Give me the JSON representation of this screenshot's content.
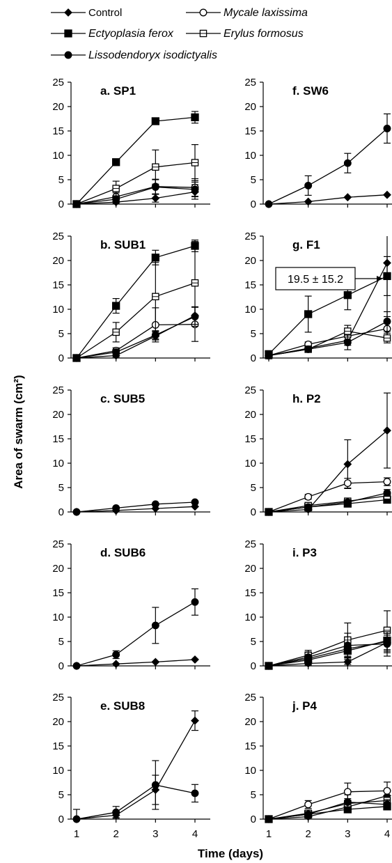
{
  "legend": [
    {
      "name": "Control",
      "marker": "diamond",
      "fill": "#000000"
    },
    {
      "name": "Mycale laxissima",
      "marker": "circle",
      "fill": "#ffffff"
    },
    {
      "name": "Ectyoplasia ferox",
      "marker": "square",
      "fill": "#000000"
    },
    {
      "name": "Erylus formosus",
      "marker": "square-open",
      "fill": "#ffffff"
    },
    {
      "name": "Lissodendoryx isodictyalis",
      "marker": "circle",
      "fill": "#000000"
    }
  ],
  "ylabel": "Area of swarm (cm²)",
  "xlabel": "Time (days)",
  "chart_data": [
    {
      "type": "line",
      "title": "a.  SP1",
      "ylim": [
        0,
        25
      ],
      "x": [
        1,
        2,
        3,
        4
      ],
      "yticks": [
        "0",
        "5",
        "10",
        "15",
        "20",
        "25"
      ],
      "xticks": [],
      "series": [
        {
          "name": "Control",
          "values": [
            0,
            0.4,
            1.2,
            2.5
          ],
          "err": [
            0,
            0.3,
            0.8,
            1.5
          ]
        },
        {
          "name": "Mycale laxissima",
          "values": [
            0,
            1.5,
            3.6,
            3.4
          ],
          "err": [
            0,
            0.8,
            1.5,
            1.8
          ]
        },
        {
          "name": "Ectyoplasia ferox",
          "values": [
            0,
            8.6,
            17.0,
            17.8
          ],
          "err": [
            0,
            0.4,
            0.5,
            1.2
          ]
        },
        {
          "name": "Erylus formosus",
          "values": [
            0,
            3.2,
            7.6,
            8.5
          ],
          "err": [
            0,
            1.5,
            3.5,
            3.7
          ]
        },
        {
          "name": "Lissodendoryx isodictyalis",
          "values": [
            0,
            1.0,
            3.5,
            3.0
          ],
          "err": [
            0,
            0.5,
            1.5,
            1.5
          ]
        }
      ]
    },
    {
      "type": "line",
      "title": "b.  SUB1",
      "ylim": [
        0,
        25
      ],
      "x": [
        1,
        2,
        3,
        4
      ],
      "yticks": [
        "0",
        "5",
        "10",
        "15",
        "20",
        "25"
      ],
      "xticks": [],
      "series": [
        {
          "name": "Control",
          "values": [
            0,
            0.5,
            4.5,
            8.7
          ],
          "err": [
            0,
            0.3,
            0.8,
            1.8
          ]
        },
        {
          "name": "Mycale laxissima",
          "values": [
            0,
            1.5,
            6.8,
            6.9
          ],
          "err": [
            0,
            0.6,
            3.5,
            3.5
          ]
        },
        {
          "name": "Ectyoplasia ferox",
          "values": [
            0,
            10.7,
            20.6,
            23.0
          ],
          "err": [
            0,
            1.5,
            1.5,
            1.2
          ]
        },
        {
          "name": "Erylus formosus",
          "values": [
            0,
            5.3,
            12.6,
            15.4
          ],
          "err": [
            0,
            2.0,
            7.0,
            8.5
          ]
        },
        {
          "name": "Lissodendoryx isodictyalis",
          "values": [
            0,
            1.2,
            4.7,
            8.5
          ],
          "err": [
            0,
            0.4,
            0.8,
            2.0
          ]
        }
      ]
    },
    {
      "type": "line",
      "title": "c.  SUB5",
      "ylim": [
        0,
        25
      ],
      "x": [
        1,
        2,
        3,
        4
      ],
      "yticks": [
        "0",
        "5",
        "10",
        "15",
        "20",
        "25"
      ],
      "xticks": [],
      "series": [
        {
          "name": "Control",
          "values": [
            0,
            0.3,
            0.7,
            1.1
          ],
          "err": [
            0,
            0,
            0,
            0
          ]
        },
        {
          "name": "Lissodendoryx isodictyalis",
          "values": [
            0,
            0.8,
            1.6,
            2.0
          ],
          "err": [
            0,
            0,
            0,
            0
          ]
        }
      ]
    },
    {
      "type": "line",
      "title": "d.  SUB6",
      "ylim": [
        0,
        25
      ],
      "x": [
        1,
        2,
        3,
        4
      ],
      "yticks": [
        "0",
        "5",
        "10",
        "15",
        "20",
        "25"
      ],
      "xticks": [],
      "series": [
        {
          "name": "Control",
          "values": [
            0,
            0.4,
            0.8,
            1.3
          ],
          "err": [
            0,
            0,
            0,
            0
          ]
        },
        {
          "name": "Lissodendoryx isodictyalis",
          "values": [
            0,
            2.3,
            8.3,
            13.1
          ],
          "err": [
            0,
            0.8,
            3.7,
            2.7
          ]
        }
      ]
    },
    {
      "type": "line",
      "title": "e.  SUB8",
      "ylim": [
        0,
        25
      ],
      "x": [
        1,
        2,
        3,
        4
      ],
      "yticks": [
        "0",
        "5",
        "10",
        "15",
        "20",
        "25"
      ],
      "xticks": [
        "1",
        "2",
        "3",
        "4"
      ],
      "series": [
        {
          "name": "Control",
          "values": [
            0,
            0.8,
            6.0,
            20.2
          ],
          "err": [
            0,
            0.5,
            3.0,
            2.0
          ]
        },
        {
          "name": "Lissodendoryx isodictyalis",
          "values": [
            0,
            1.4,
            7.0,
            5.3
          ],
          "err": [
            2.0,
            1.2,
            5.0,
            1.8
          ]
        }
      ]
    },
    {
      "type": "line",
      "title": "f.  SW6",
      "ylim": [
        0,
        25
      ],
      "x": [
        1,
        2,
        3,
        4
      ],
      "yticks": [
        "0",
        "5",
        "10",
        "15",
        "20",
        "25"
      ],
      "xticks": [],
      "series": [
        {
          "name": "Control",
          "values": [
            0,
            0.5,
            1.4,
            1.9
          ],
          "err": [
            0,
            0,
            0,
            0
          ]
        },
        {
          "name": "Lissodendoryx isodictyalis",
          "values": [
            0,
            3.8,
            8.4,
            15.5
          ],
          "err": [
            0,
            2.0,
            2.0,
            3.0
          ]
        }
      ]
    },
    {
      "type": "line",
      "title": "g.  F1",
      "ylim": [
        0,
        25
      ],
      "x": [
        1,
        2,
        3,
        4
      ],
      "yticks": [
        "0",
        "5",
        "10",
        "15",
        "20",
        "25"
      ],
      "xticks": [],
      "annotation": "19.5 ± 15.2",
      "series": [
        {
          "name": "Control",
          "values": [
            0.5,
            2.0,
            3.6,
            19.5
          ],
          "err": [
            0,
            0.5,
            1.0,
            15.2
          ]
        },
        {
          "name": "Mycale laxissima",
          "values": [
            0.5,
            2.8,
            4.5,
            6.0
          ],
          "err": [
            0,
            0.5,
            1.0,
            2.5
          ]
        },
        {
          "name": "Ectyoplasia ferox",
          "values": [
            0.8,
            9.0,
            12.9,
            16.8
          ],
          "err": [
            0,
            3.7,
            3.0,
            4.0
          ]
        },
        {
          "name": "Erylus formosus",
          "values": [
            0.5,
            1.8,
            5.5,
            4.1
          ],
          "err": [
            0,
            0.6,
            1.2,
            1.0
          ]
        },
        {
          "name": "Lissodendoryx isodictyalis",
          "values": [
            0.5,
            1.8,
            3.2,
            7.5
          ],
          "err": [
            0,
            0.5,
            1.5,
            2.0
          ]
        }
      ]
    },
    {
      "type": "line",
      "title": "h.  P2",
      "ylim": [
        0,
        25
      ],
      "x": [
        1,
        2,
        3,
        4
      ],
      "yticks": [
        "0",
        "5",
        "10",
        "15",
        "20",
        "25"
      ],
      "xticks": [],
      "series": [
        {
          "name": "Control",
          "values": [
            0,
            0.5,
            9.8,
            16.7
          ],
          "err": [
            0,
            0.3,
            5.0,
            7.7
          ]
        },
        {
          "name": "Mycale laxissima",
          "values": [
            0,
            3.1,
            5.9,
            6.2
          ],
          "err": [
            0,
            0.5,
            1.0,
            0.8
          ]
        },
        {
          "name": "Ectyoplasia ferox",
          "values": [
            0,
            1.0,
            1.7,
            2.5
          ],
          "err": [
            0,
            0.3,
            0.5,
            0.6
          ]
        },
        {
          "name": "Erylus formosus",
          "values": [
            0,
            1.3,
            2.2,
            3.3
          ],
          "err": [
            0,
            0.4,
            0.5,
            0.6
          ]
        },
        {
          "name": "Lissodendoryx isodictyalis",
          "values": [
            0,
            1.0,
            2.0,
            3.9
          ],
          "err": [
            0,
            0.3,
            0.5,
            0.7
          ]
        }
      ]
    },
    {
      "type": "line",
      "title": "i.  P3",
      "ylim": [
        0,
        25
      ],
      "x": [
        1,
        2,
        3,
        4
      ],
      "yticks": [
        "0",
        "5",
        "10",
        "15",
        "20",
        "25"
      ],
      "xticks": [],
      "series": [
        {
          "name": "Control",
          "values": [
            0,
            0.5,
            0.8,
            4.8
          ],
          "err": [
            0,
            0.3,
            0.5,
            1.5
          ]
        },
        {
          "name": "Mycale laxissima",
          "values": [
            0,
            1.5,
            3.5,
            5.0
          ],
          "err": [
            0,
            1.0,
            1.5,
            2.0
          ]
        },
        {
          "name": "Ectyoplasia ferox",
          "values": [
            0,
            1.2,
            3.1,
            5.2
          ],
          "err": [
            0,
            1.0,
            1.5,
            2.5
          ]
        },
        {
          "name": "Erylus formosus",
          "values": [
            0,
            2.2,
            5.3,
            7.3
          ],
          "err": [
            0,
            1.0,
            3.5,
            4.0
          ]
        },
        {
          "name": "Lissodendoryx isodictyalis",
          "values": [
            0,
            1.8,
            4.2,
            4.5
          ],
          "err": [
            0,
            1.0,
            2.5,
            2.5
          ]
        }
      ]
    },
    {
      "type": "line",
      "title": "j.  P4",
      "ylim": [
        0,
        25
      ],
      "x": [
        1,
        2,
        3,
        4
      ],
      "yticks": [
        "0",
        "5",
        "10",
        "15",
        "20",
        "25"
      ],
      "xticks": [
        "1",
        "2",
        "3",
        "4"
      ],
      "series": [
        {
          "name": "Control",
          "values": [
            0,
            0.5,
            2.5,
            4.8
          ],
          "err": [
            0,
            0.3,
            0.8,
            1.0
          ]
        },
        {
          "name": "Mycale laxissima",
          "values": [
            0,
            3.0,
            5.6,
            5.8
          ],
          "err": [
            0,
            0.8,
            1.8,
            1.8
          ]
        },
        {
          "name": "Ectyoplasia ferox",
          "values": [
            0,
            1.0,
            2.0,
            2.6
          ],
          "err": [
            0,
            0.4,
            0.5,
            0.6
          ]
        },
        {
          "name": "Erylus formosus",
          "values": [
            0,
            1.2,
            3.2,
            3.8
          ],
          "err": [
            0,
            0.5,
            1.0,
            1.0
          ]
        },
        {
          "name": "Lissodendoryx isodictyalis",
          "values": [
            0,
            1.0,
            3.5,
            3.0
          ],
          "err": [
            0,
            0.5,
            1.5,
            1.0
          ]
        }
      ]
    }
  ]
}
